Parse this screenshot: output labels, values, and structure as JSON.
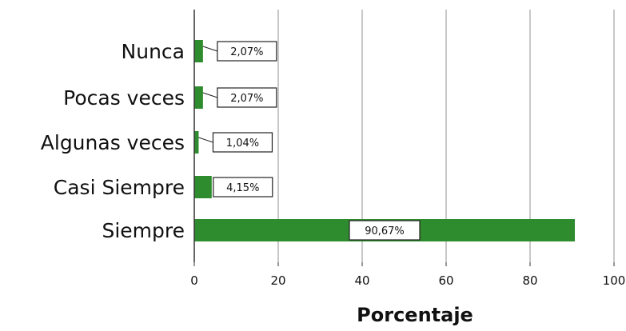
{
  "chart_data": {
    "type": "bar",
    "orientation": "horizontal",
    "categories": [
      "Nunca",
      "Pocas veces",
      "Algunas veces",
      "Casi Siempre",
      "Siempre"
    ],
    "values": [
      2.07,
      2.07,
      1.04,
      4.15,
      90.67
    ],
    "data_labels": [
      "2,07%",
      "2,07%",
      "1,04%",
      "4,15%",
      "90,67%"
    ],
    "xlabel": "Porcentaje",
    "ylabel": "",
    "title": "",
    "xlim": [
      0,
      100
    ],
    "xticks": [
      0,
      20,
      40,
      60,
      80,
      100
    ],
    "xtick_labels": [
      "0",
      "20",
      "40",
      "60",
      "80",
      "100"
    ],
    "grid": "vertical",
    "legend": "none",
    "colors": {
      "bar": "#2e8b2e",
      "grid": "#c8c8c8",
      "axis": "#333333",
      "label_box_border": "#222222",
      "label_box_fill": "#ffffff"
    }
  }
}
